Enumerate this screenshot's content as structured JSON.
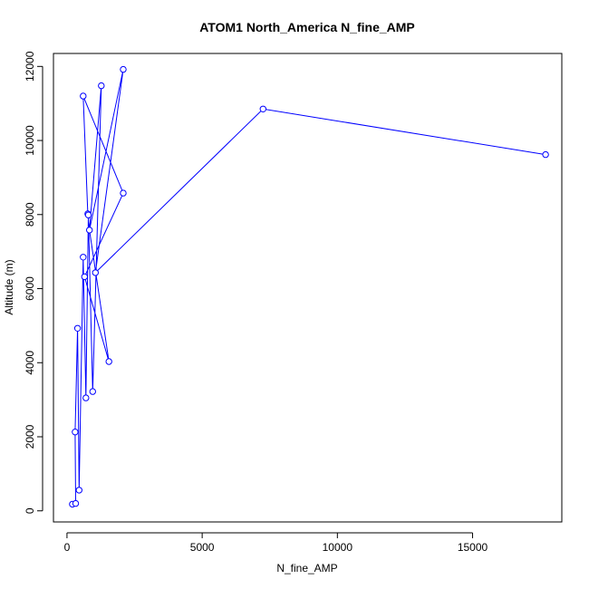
{
  "chart_data": {
    "type": "line",
    "title": "ATOM1 North_America N_fine_AMP",
    "xlabel": "N_fine_AMP",
    "ylabel": "Altitude (m)",
    "xlim": [
      -500,
      18300
    ],
    "ylim": [
      -300,
      12350
    ],
    "x_ticks": [
      0,
      5000,
      10000,
      15000
    ],
    "x_tick_labels": [
      "0",
      "5000",
      "10000",
      "15000"
    ],
    "y_ticks": [
      0,
      2000,
      4000,
      6000,
      8000,
      10000,
      12000
    ],
    "y_tick_labels": [
      "0",
      "2000",
      "4000",
      "6000",
      "8000",
      "10000",
      "12000"
    ],
    "grid": false,
    "series": [
      {
        "color": "#0000ff",
        "marker": "open-circle",
        "points": [
          {
            "x": 200,
            "y": 180
          },
          {
            "x": 320,
            "y": 200
          },
          {
            "x": 450,
            "y": 560
          },
          {
            "x": 300,
            "y": 2130
          },
          {
            "x": 700,
            "y": 3050
          },
          {
            "x": 950,
            "y": 3220
          },
          {
            "x": 1550,
            "y": 4030
          },
          {
            "x": 390,
            "y": 4930
          },
          {
            "x": 650,
            "y": 6320
          },
          {
            "x": 600,
            "y": 6850
          },
          {
            "x": 830,
            "y": 7580
          },
          {
            "x": 770,
            "y": 8020
          },
          {
            "x": 790,
            "y": 7990
          },
          {
            "x": 2080,
            "y": 8580
          },
          {
            "x": 600,
            "y": 11200
          },
          {
            "x": 1270,
            "y": 11480
          },
          {
            "x": 2080,
            "y": 11920
          },
          {
            "x": 1050,
            "y": 6430
          },
          {
            "x": 7250,
            "y": 10850
          },
          {
            "x": 17700,
            "y": 9620
          }
        ],
        "path": [
          {
            "x": 200,
            "y": 180
          },
          {
            "x": 320,
            "y": 200
          },
          {
            "x": 300,
            "y": 2130
          },
          {
            "x": 390,
            "y": 4930
          },
          {
            "x": 450,
            "y": 560
          },
          {
            "x": 600,
            "y": 6850
          },
          {
            "x": 700,
            "y": 3050
          },
          {
            "x": 790,
            "y": 7990
          },
          {
            "x": 950,
            "y": 3220
          },
          {
            "x": 1270,
            "y": 11480
          },
          {
            "x": 830,
            "y": 7580
          },
          {
            "x": 770,
            "y": 8020
          },
          {
            "x": 600,
            "y": 11200
          },
          {
            "x": 2080,
            "y": 8580
          },
          {
            "x": 650,
            "y": 6320
          },
          {
            "x": 1550,
            "y": 4030
          },
          {
            "x": 830,
            "y": 7580
          },
          {
            "x": 2080,
            "y": 11920
          },
          {
            "x": 1050,
            "y": 6430
          },
          {
            "x": 7250,
            "y": 10850
          },
          {
            "x": 17700,
            "y": 9620
          }
        ]
      }
    ]
  }
}
